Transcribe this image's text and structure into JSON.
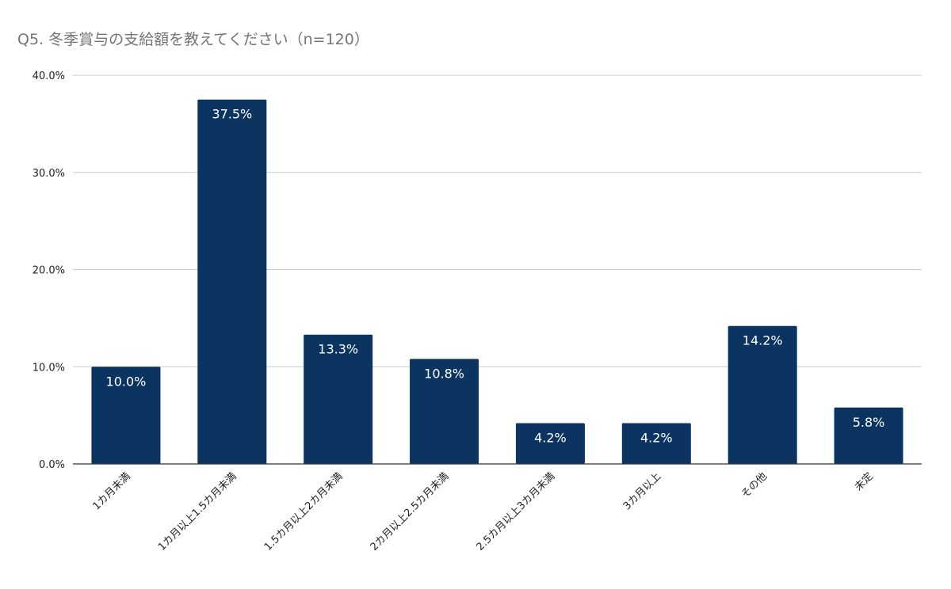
{
  "chart_data": {
    "type": "bar",
    "title": "Q5. 冬季賞与の支給額を教えてください（n=120）",
    "xlabel": "",
    "ylabel": "",
    "categories": [
      "1カ月未満",
      "1カ月以上1.5カ月未満",
      "1.5カ月以上2カ月未満",
      "2カ月以上2.5カ月未満",
      "2.5カ月以上3カ月未満",
      "3カ月以上",
      "その他",
      "未定"
    ],
    "values": [
      10.0,
      37.5,
      13.3,
      10.8,
      4.2,
      4.2,
      14.2,
      5.8
    ],
    "data_labels": [
      "10.0%",
      "37.5%",
      "13.3%",
      "10.8%",
      "4.2%",
      "4.2%",
      "14.2%",
      "5.8%"
    ],
    "ylim": [
      0,
      40
    ],
    "yticks": [
      0,
      10,
      20,
      30,
      40
    ],
    "ytick_labels": [
      "0.0%",
      "10.0%",
      "20.0%",
      "30.0%",
      "40.0%"
    ],
    "grid": true,
    "legend": "none",
    "colors": {
      "bar": "#0b3560",
      "title": "#757575",
      "grid": "#cccccc",
      "axis": "#333333",
      "label": "#222222",
      "data_label": "#ffffff"
    }
  }
}
